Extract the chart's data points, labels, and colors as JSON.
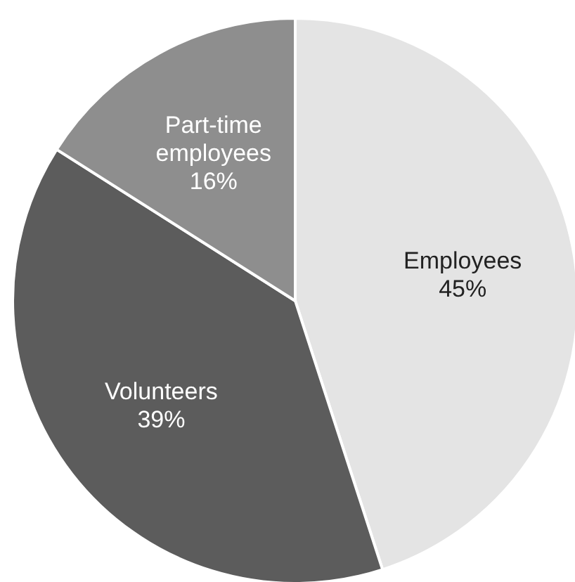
{
  "chart_data": {
    "type": "pie",
    "categories": [
      "Employees",
      "Volunteers",
      "Part-time employees"
    ],
    "values": [
      45,
      39,
      16
    ],
    "colors": [
      "#e4e4e4",
      "#5c5c5c",
      "#8e8e8e"
    ],
    "value_labels": [
      "45%",
      "39%",
      "16%"
    ]
  }
}
